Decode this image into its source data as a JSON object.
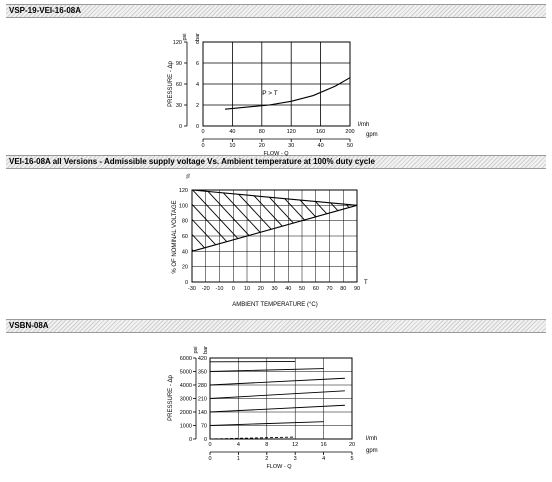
{
  "sections": [
    {
      "title": "VSP-19-VEI-16-08A"
    },
    {
      "title": "VEI-16-08A all Versions - Admissible supply voltage Vs. Ambient temperature at 100% duty cycle"
    },
    {
      "title": "VSBN-08A"
    }
  ],
  "chart_data": [
    {
      "type": "line",
      "ylabel": "PRESSURE - Δp",
      "xlabel": "FLOW - Q",
      "x_units_primary": "l/mh",
      "x_units_secondary": "gpm",
      "y_units_left": "psi",
      "y_units_right": "bar",
      "xticks_primary": [
        "0",
        "40",
        "80",
        "120",
        "160",
        "200"
      ],
      "xticks_secondary": [
        "0",
        "10",
        "20",
        "30",
        "40",
        "50"
      ],
      "yticks_left": [
        "0",
        "30",
        "60",
        "90",
        "120"
      ],
      "yticks_right": [
        "0",
        "2",
        "4",
        "6",
        "8"
      ],
      "xlim": [
        0,
        200
      ],
      "ylim": [
        0,
        8
      ],
      "annotation": "P > T",
      "series": [
        {
          "x": [
            30,
            60,
            90,
            120,
            150,
            180,
            200
          ],
          "y": [
            1.6,
            1.8,
            2.0,
            2.35,
            2.9,
            3.8,
            4.6
          ]
        }
      ]
    },
    {
      "type": "area",
      "ylabel": "% OF NOMINAL VOLTAGE",
      "y_units": "%",
      "xlabel": "AMBIENT TEMPERATURE (°C)",
      "x_units": "T",
      "xticks": [
        "-30",
        "-20",
        "-10",
        "0",
        "10",
        "20",
        "30",
        "40",
        "50",
        "60",
        "70",
        "80",
        "90"
      ],
      "yticks": [
        "0",
        "20",
        "40",
        "60",
        "80",
        "100",
        "120"
      ],
      "xlim": [
        -30,
        90
      ],
      "ylim": [
        0,
        120
      ],
      "region": {
        "x": [
          -30,
          -30,
          90,
          -30
        ],
        "y": [
          40,
          120,
          100,
          40
        ]
      },
      "boundary": {
        "upper": {
          "x": [
            -30,
            90
          ],
          "y": [
            120,
            100
          ]
        },
        "lower": {
          "x": [
            -30,
            90
          ],
          "y": [
            40,
            100
          ]
        }
      }
    },
    {
      "type": "line",
      "ylabel": "PRESSURE - Δp",
      "xlabel": "FLOW - Q",
      "x_units_primary": "l/mh",
      "x_units_secondary": "gpm",
      "y_units_left": "psi",
      "y_units_right": "bar",
      "xticks_primary": [
        "0",
        "4",
        "8",
        "12",
        "16",
        "20"
      ],
      "xticks_secondary": [
        "0",
        "1",
        "2",
        "3",
        "4",
        "5"
      ],
      "yticks_left": [
        "0",
        "1000",
        "2000",
        "3000",
        "4000",
        "5000",
        "6000"
      ],
      "yticks_right": [
        "0",
        "70",
        "140",
        "210",
        "280",
        "350",
        "420"
      ],
      "xlim": [
        0,
        20
      ],
      "ylim": [
        0,
        420
      ],
      "series": [
        {
          "x": [
            0,
            12
          ],
          "y": [
            0,
            10
          ]
        },
        {
          "x": [
            0,
            16
          ],
          "y": [
            70,
            90
          ]
        },
        {
          "x": [
            0,
            19
          ],
          "y": [
            140,
            175
          ]
        },
        {
          "x": [
            0,
            19
          ],
          "y": [
            210,
            250
          ]
        },
        {
          "x": [
            0,
            19
          ],
          "y": [
            280,
            315
          ]
        },
        {
          "x": [
            0,
            16
          ],
          "y": [
            350,
            365
          ]
        },
        {
          "x": [
            0,
            12
          ],
          "y": [
            400,
            402
          ]
        }
      ]
    }
  ]
}
